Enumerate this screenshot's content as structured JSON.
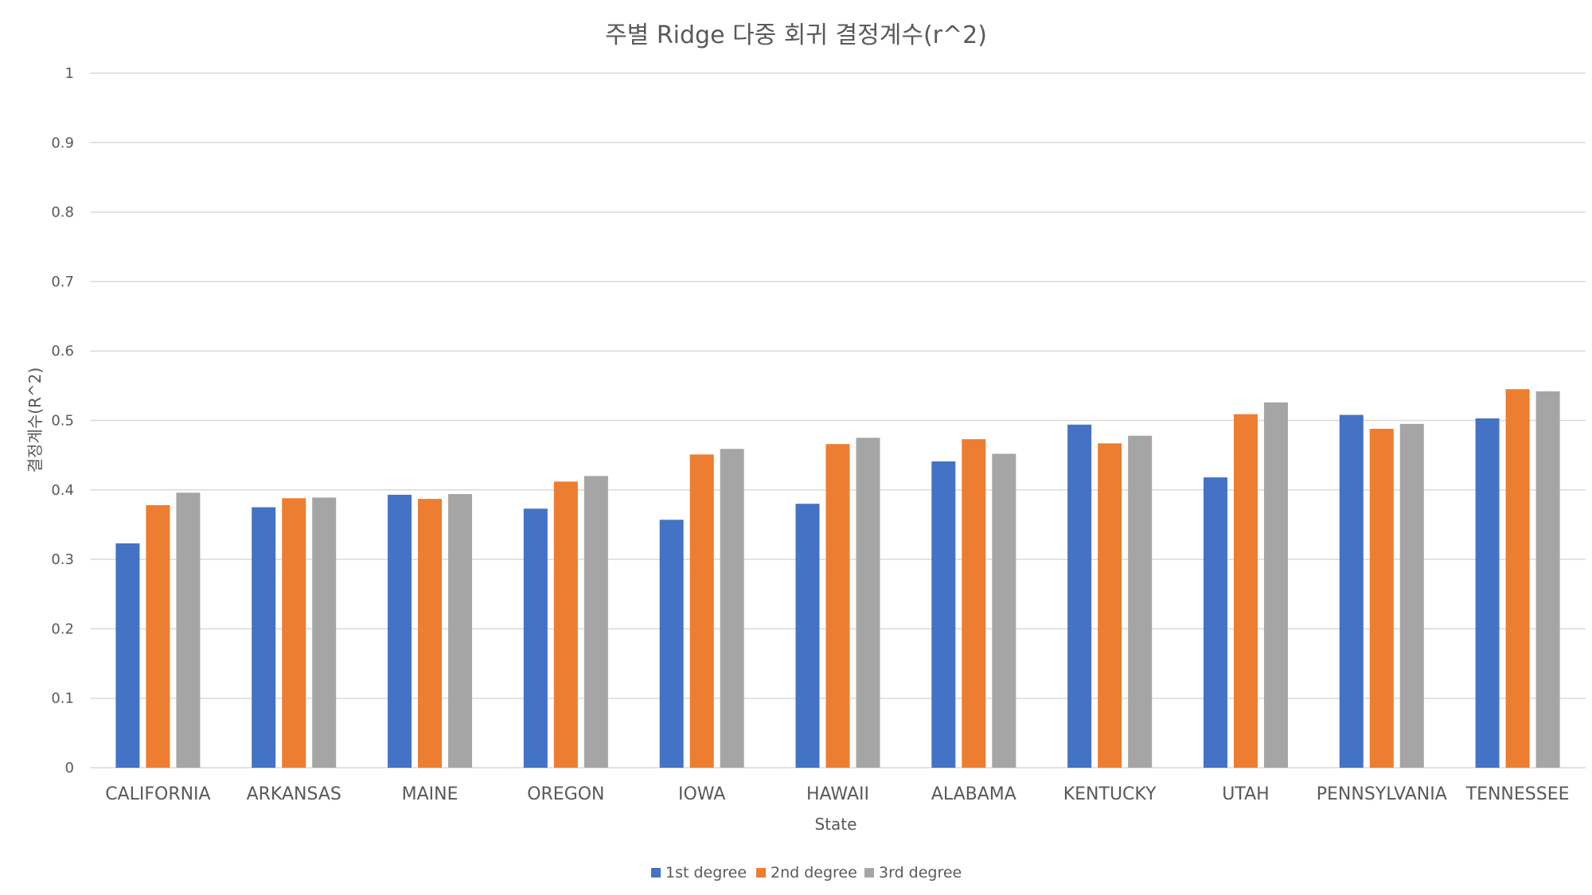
{
  "chart_data": {
    "type": "bar",
    "title": "주별 Ridge 다중 회귀 결정계수(r^2)",
    "xlabel": "State",
    "ylabel": "결정계수(R^2)",
    "ylim": [
      0,
      1
    ],
    "yticks": [
      "0",
      "0.1",
      "0.2",
      "0.3",
      "0.4",
      "0.5",
      "0.6",
      "0.7",
      "0.8",
      "0.9",
      "1"
    ],
    "grid": true,
    "legend_position": "bottom",
    "categories": [
      "CALIFORNIA",
      "ARKANSAS",
      "MAINE",
      "OREGON",
      "IOWA",
      "HAWAII",
      "ALABAMA",
      "KENTUCKY",
      "UTAH",
      "PENNSYLVANIA",
      "TENNESSEE"
    ],
    "series": [
      {
        "name": "1st degree",
        "color": "#4472c4",
        "values": [
          0.323,
          0.375,
          0.393,
          0.373,
          0.357,
          0.38,
          0.441,
          0.494,
          0.418,
          0.508,
          0.503
        ]
      },
      {
        "name": "2nd degree",
        "color": "#ed7d31",
        "values": [
          0.378,
          0.388,
          0.387,
          0.412,
          0.451,
          0.466,
          0.473,
          0.467,
          0.509,
          0.488,
          0.545
        ]
      },
      {
        "name": "3rd degree",
        "color": "#a5a5a5",
        "values": [
          0.396,
          0.389,
          0.394,
          0.42,
          0.459,
          0.475,
          0.452,
          0.478,
          0.526,
          0.495,
          0.542
        ]
      }
    ]
  }
}
